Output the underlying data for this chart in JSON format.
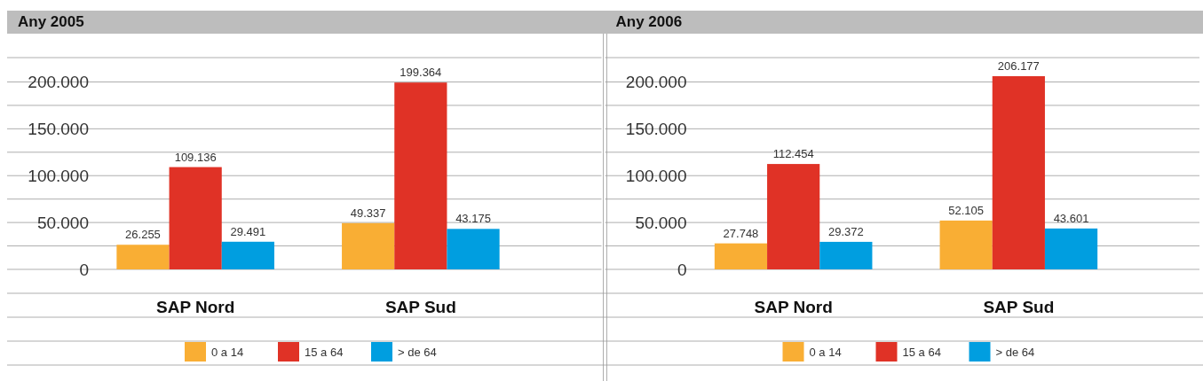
{
  "chart_data": [
    {
      "type": "bar",
      "title": "Any 2005",
      "categories": [
        "SAP Nord",
        "SAP Sud"
      ],
      "series": [
        {
          "name": "0 a 14",
          "color": "#f9ae34",
          "values": [
            26255,
            49337
          ],
          "value_labels": [
            "26.255",
            "49.337"
          ]
        },
        {
          "name": "15 a 64",
          "color": "#e03226",
          "values": [
            109136,
            199364
          ],
          "value_labels": [
            "109.136",
            "199.364"
          ]
        },
        {
          "name": "> de 64",
          "color": "#009ee0",
          "values": [
            29491,
            43175
          ],
          "value_labels": [
            "29.491",
            "43.175"
          ]
        }
      ],
      "ylim": [
        0,
        226000
      ],
      "yticks": [
        {
          "value": 0,
          "label": "0"
        },
        {
          "value": 50000,
          "label": "50.000"
        },
        {
          "value": 100000,
          "label": "100.000"
        },
        {
          "value": 150000,
          "label": "150.000"
        },
        {
          "value": 200000,
          "label": "200.000"
        }
      ],
      "grid": "y",
      "legend": "bottom"
    },
    {
      "type": "bar",
      "title": "Any 2006",
      "categories": [
        "SAP Nord",
        "SAP Sud"
      ],
      "series": [
        {
          "name": "0 a 14",
          "color": "#f9ae34",
          "values": [
            27748,
            52105
          ],
          "value_labels": [
            "27.748",
            "52.105"
          ]
        },
        {
          "name": "15 a 64",
          "color": "#e03226",
          "values": [
            112454,
            206177
          ],
          "value_labels": [
            "112.454",
            "206.177"
          ]
        },
        {
          "name": "> de 64",
          "color": "#009ee0",
          "values": [
            29372,
            43601
          ],
          "value_labels": [
            "29.372",
            "43.601"
          ]
        }
      ],
      "ylim": [
        0,
        226000
      ],
      "yticks": [
        {
          "value": 0,
          "label": "0"
        },
        {
          "value": 50000,
          "label": "50.000"
        },
        {
          "value": 100000,
          "label": "100.000"
        },
        {
          "value": 150000,
          "label": "150.000"
        },
        {
          "value": 200000,
          "label": "200.000"
        }
      ],
      "grid": "y",
      "legend": "bottom"
    }
  ]
}
